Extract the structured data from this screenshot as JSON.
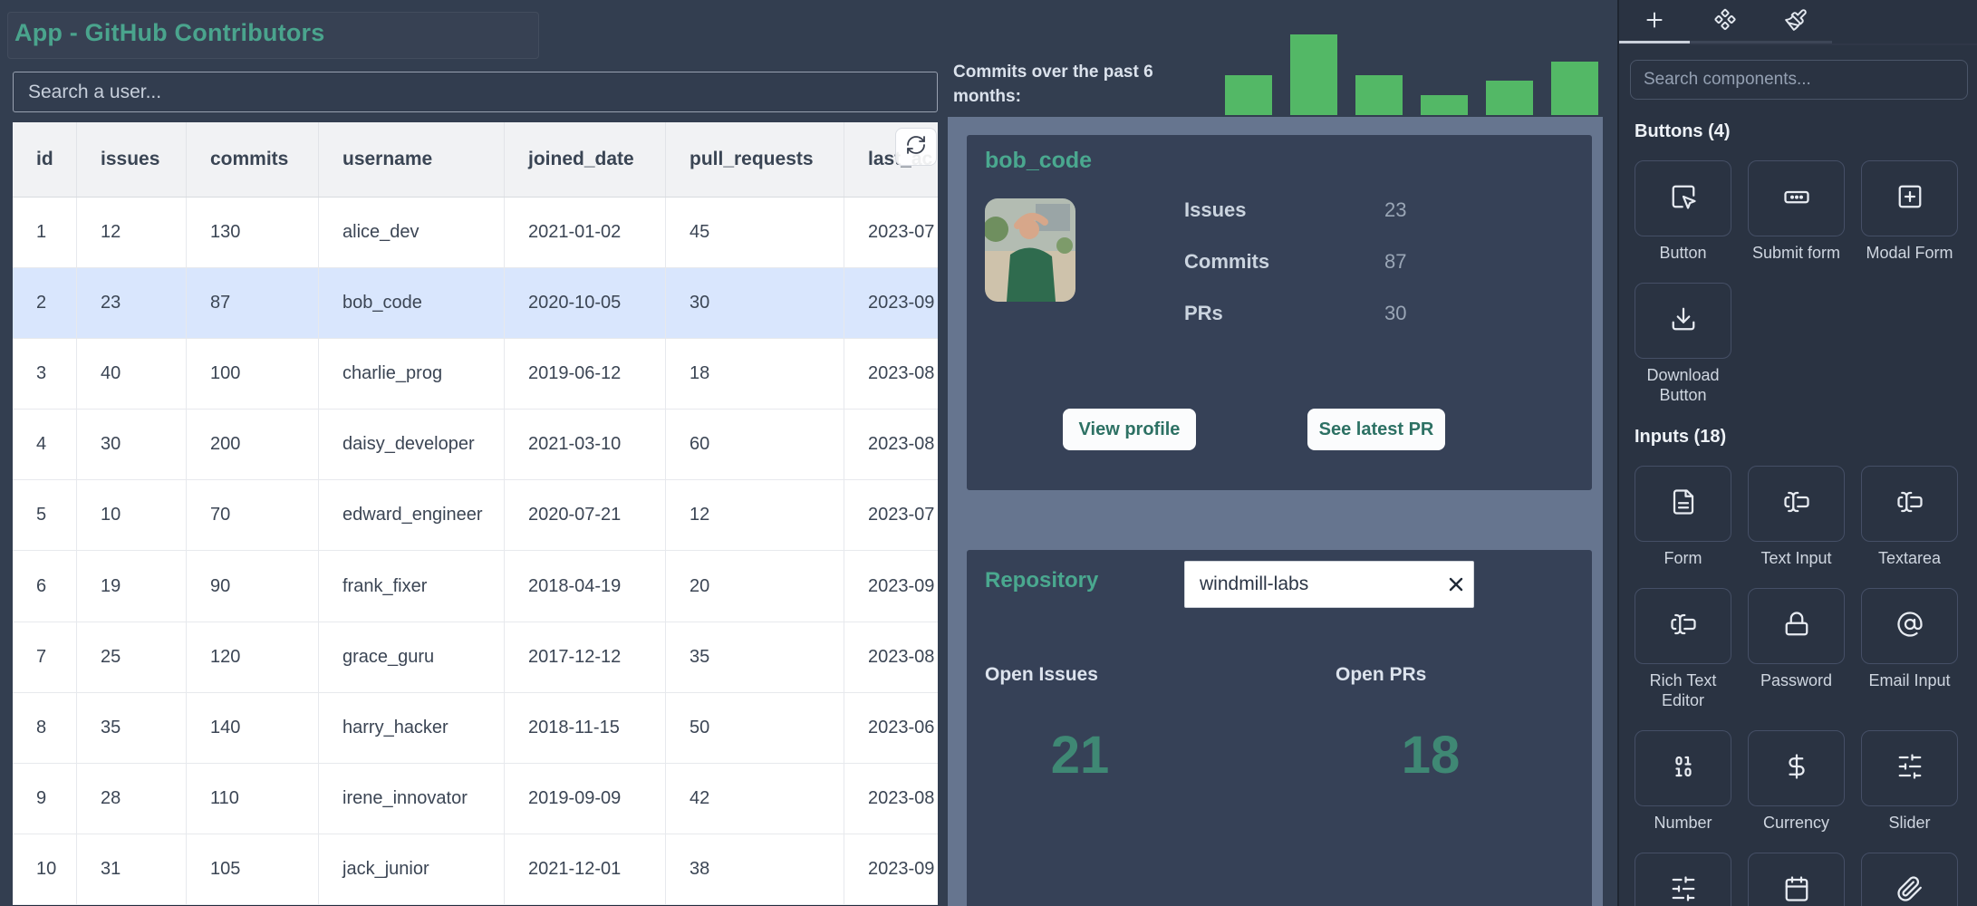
{
  "app": {
    "title": "App - GitHub Contributors"
  },
  "user_search": {
    "placeholder": "Search a user..."
  },
  "table": {
    "columns": [
      "id",
      "issues",
      "commits",
      "username",
      "joined_date",
      "pull_requests",
      "last_ac"
    ],
    "selected_index": 1,
    "refresh_icon": "refresh-cw",
    "rows": [
      [
        "1",
        "12",
        "130",
        "alice_dev",
        "2021-01-02",
        "45",
        "2023-07"
      ],
      [
        "2",
        "23",
        "87",
        "bob_code",
        "2020-10-05",
        "30",
        "2023-09"
      ],
      [
        "3",
        "40",
        "100",
        "charlie_prog",
        "2019-06-12",
        "18",
        "2023-08"
      ],
      [
        "4",
        "30",
        "200",
        "daisy_developer",
        "2021-03-10",
        "60",
        "2023-08"
      ],
      [
        "5",
        "10",
        "70",
        "edward_engineer",
        "2020-07-21",
        "12",
        "2023-07"
      ],
      [
        "6",
        "19",
        "90",
        "frank_fixer",
        "2018-04-19",
        "20",
        "2023-09"
      ],
      [
        "7",
        "25",
        "120",
        "grace_guru",
        "2017-12-12",
        "35",
        "2023-08"
      ],
      [
        "8",
        "35",
        "140",
        "harry_hacker",
        "2018-11-15",
        "50",
        "2023-06"
      ],
      [
        "9",
        "28",
        "110",
        "irene_innovator",
        "2019-09-09",
        "42",
        "2023-08"
      ],
      [
        "10",
        "31",
        "105",
        "jack_junior",
        "2021-12-01",
        "38",
        "2023-09"
      ]
    ]
  },
  "commits_chart": {
    "label": "Commits over the past 6 months:",
    "chart_data": {
      "type": "bar",
      "values": [
        44,
        89,
        44,
        22,
        38,
        59
      ],
      "categories": [
        "",
        "",
        "",
        "",
        "",
        ""
      ],
      "title": "Commits over the past 6 months",
      "ylim": [
        0,
        89
      ],
      "bar_color": "#53b866",
      "axes_visible": false,
      "legend": "none"
    }
  },
  "user_card": {
    "title": "bob_code",
    "avatar": "bob-profile-photo",
    "stats": [
      {
        "label": "Issues",
        "value": "23"
      },
      {
        "label": "Commits",
        "value": "87"
      },
      {
        "label": "PRs",
        "value": "30"
      }
    ],
    "buttons": [
      {
        "label": "View profile"
      },
      {
        "label": "See latest PR"
      }
    ]
  },
  "repo_card": {
    "title": "Repository",
    "input_value": "windmill-labs",
    "clear_icon": "x",
    "stats": [
      {
        "label": "Open Issues",
        "value": "21"
      },
      {
        "label": "Open PRs",
        "value": "18"
      }
    ]
  },
  "sidebar": {
    "tabs": [
      {
        "icon": "plus",
        "active": true
      },
      {
        "icon": "component",
        "active": false
      },
      {
        "icon": "paintbrush",
        "active": false
      }
    ],
    "search_placeholder": "Search components...",
    "sections": [
      {
        "title": "Buttons (4)",
        "items": [
          {
            "label": "Button",
            "icon": "square-mouse-pointer"
          },
          {
            "label": "Submit form",
            "icon": "rectangle-ellipsis"
          },
          {
            "label": "Modal Form",
            "icon": "square-plus"
          },
          {
            "label": "Download Button",
            "icon": "download"
          }
        ]
      },
      {
        "title": "Inputs (18)",
        "items": [
          {
            "label": "Form",
            "icon": "file-text"
          },
          {
            "label": "Text Input",
            "icon": "text-cursor-input"
          },
          {
            "label": "Textarea",
            "icon": "text-cursor-input"
          },
          {
            "label": "Rich Text Editor",
            "icon": "text-cursor-input"
          },
          {
            "label": "Password",
            "icon": "lock"
          },
          {
            "label": "Email Input",
            "icon": "at-sign"
          },
          {
            "label": "Number",
            "icon": "binary"
          },
          {
            "label": "Currency",
            "icon": "dollar-sign"
          },
          {
            "label": "Slider",
            "icon": "sliders"
          },
          {
            "label": "",
            "icon": "sliders"
          },
          {
            "label": "",
            "icon": "calendar"
          },
          {
            "label": "",
            "icon": "paperclip"
          }
        ]
      }
    ]
  },
  "colors": {
    "accent_teal": "#4aa48d",
    "big_number_teal": "#3f8874",
    "bar_green": "#53b866",
    "row_highlight": "#d9e6fd",
    "panel_slate": "#66758f",
    "card_slate": "#364157",
    "canvas": "#333e50",
    "sidebar_bg": "#2a3342"
  }
}
